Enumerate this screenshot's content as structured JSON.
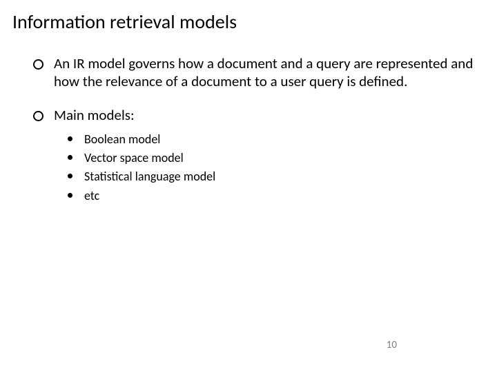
{
  "title": "Information retrieval models",
  "bullets": [
    {
      "text": "An IR model governs how a document and a query are represented and how the relevance of a document to a user query is defined."
    },
    {
      "text": "Main models:",
      "sub": [
        "Boolean model",
        "Vector space model",
        "Statistical language model",
        "etc"
      ]
    }
  ],
  "pageNumber": "10",
  "colors": {
    "background": "#ffffff",
    "text": "#000000",
    "pageNum": "#808080"
  },
  "typography": {
    "titleSize": 28,
    "bodySize": 21,
    "subSize": 18,
    "pageNumSize": 15,
    "family": "Calibri"
  }
}
